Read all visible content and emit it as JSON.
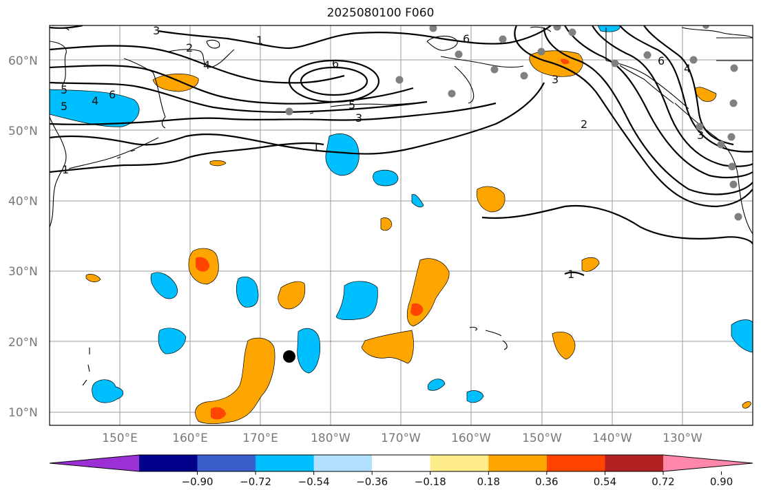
{
  "title": "2025080100 F060",
  "lat_labels": [
    "60°N",
    "50°N",
    "40°N",
    "30°N",
    "20°N",
    "10°N"
  ],
  "lon_labels": [
    "150°E",
    "160°E",
    "170°E",
    "180°W",
    "170°W",
    "160°W",
    "150°W",
    "140°W",
    "130°W"
  ],
  "contour_labels": [
    "1",
    "2",
    "3",
    "4",
    "5",
    "6",
    "6",
    "5",
    "3",
    "1",
    "2",
    "3",
    "4",
    "6",
    "5",
    "6",
    "4",
    "3",
    "1",
    "1"
  ],
  "colorbar": {
    "ticks": [
      "−0.90",
      "−0.72",
      "−0.54",
      "−0.36",
      "−0.18",
      "0.18",
      "0.36",
      "0.54",
      "0.72",
      "0.90"
    ],
    "colors": [
      "#9b30d4",
      "#00008b",
      "#3a5fcd",
      "#00bfff",
      "#b2e0ff",
      "#ffffff",
      "#ffec8b",
      "#ffa500",
      "#ff4500",
      "#b22222",
      "#ff88aa"
    ]
  },
  "colors": {
    "negative_shade": "#00bfff",
    "positive_shade": "#ffa500",
    "strong_positive_shade": "#ff4500",
    "station_marker": "#808080",
    "storm_marker": "#000000"
  }
}
